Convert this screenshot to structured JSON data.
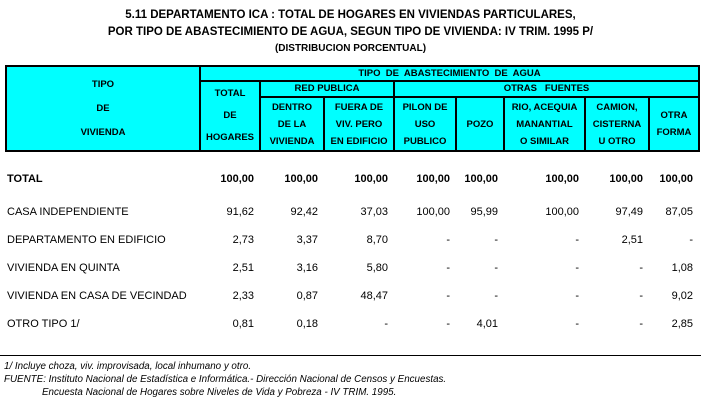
{
  "title": {
    "line1": "5.11 DEPARTAMENTO ICA : TOTAL DE HOGARES EN VIVIENDAS PARTICULARES,",
    "line2": "POR TIPO DE ABASTECIMIENTO DE AGUA, SEGUN TIPO DE VIVIENDA: IV TRIM. 1995 P/",
    "line3": "(DISTRIBUCION PORCENTUAL)"
  },
  "colors": {
    "header_bg": "#00FFFF",
    "border": "#000000",
    "text": "#000000",
    "page_bg": "#FFFFFF"
  },
  "table": {
    "header": {
      "top_title": "TIPO  DE  ABASTECIMIENTO  DE  AGUA",
      "stub": "TIPO\nDE\nVIVIENDA",
      "total_col": "TOTAL\nDE\nHOGARES",
      "red_publica": "RED PUBLICA",
      "otras_fuentes": "OTRAS   FUENTES",
      "cols": [
        "DENTRO\nDE LA\nVIVIENDA",
        "FUERA DE\nVIV. PERO\nEN EDIFICIO",
        "PILON DE\nUSO\nPUBLICO",
        "POZO",
        "RIO, ACEQUIA\nMANANTIAL\nO SIMILAR",
        "CAMION,\nCISTERNA\nU OTRO",
        "OTRA\nFORMA"
      ]
    },
    "rows": [
      {
        "label": "TOTAL",
        "bold": true,
        "values": [
          "100,00",
          "100,00",
          "100,00",
          "100,00",
          "100,00",
          "100,00",
          "100,00",
          "100,00"
        ]
      },
      {
        "label": "CASA INDEPENDIENTE",
        "bold": false,
        "values": [
          "91,62",
          "92,42",
          "37,03",
          "100,00",
          "95,99",
          "100,00",
          "97,49",
          "87,05"
        ]
      },
      {
        "label": "DEPARTAMENTO EN EDIFICIO",
        "bold": false,
        "values": [
          "2,73",
          "3,37",
          "8,70",
          "-",
          "-",
          "-",
          "2,51",
          "-"
        ]
      },
      {
        "label": "VIVIENDA EN QUINTA",
        "bold": false,
        "values": [
          "2,51",
          "3,16",
          "5,80",
          "-",
          "-",
          "-",
          "-",
          "1,08"
        ]
      },
      {
        "label": "VIVIENDA EN CASA DE VECINDAD",
        "bold": false,
        "values": [
          "2,33",
          "0,87",
          "48,47",
          "-",
          "-",
          "-",
          "-",
          "9,02"
        ]
      },
      {
        "label": "OTRO TIPO 1/",
        "bold": false,
        "values": [
          "0,81",
          "0,18",
          "-",
          "-",
          "4,01",
          "-",
          "-",
          "2,85"
        ]
      }
    ]
  },
  "footnotes": {
    "note1": "1/ Incluye choza, viv. improvisada, local inhumano y otro.",
    "source1": "FUENTE: Instituto Nacional de Estadística e Informática.- Dirección Nacional de Censos y Encuestas.",
    "source2": "Encuesta Nacional de Hogares sobre Niveles de Vida y Pobreza - IV TRIM. 1995."
  }
}
